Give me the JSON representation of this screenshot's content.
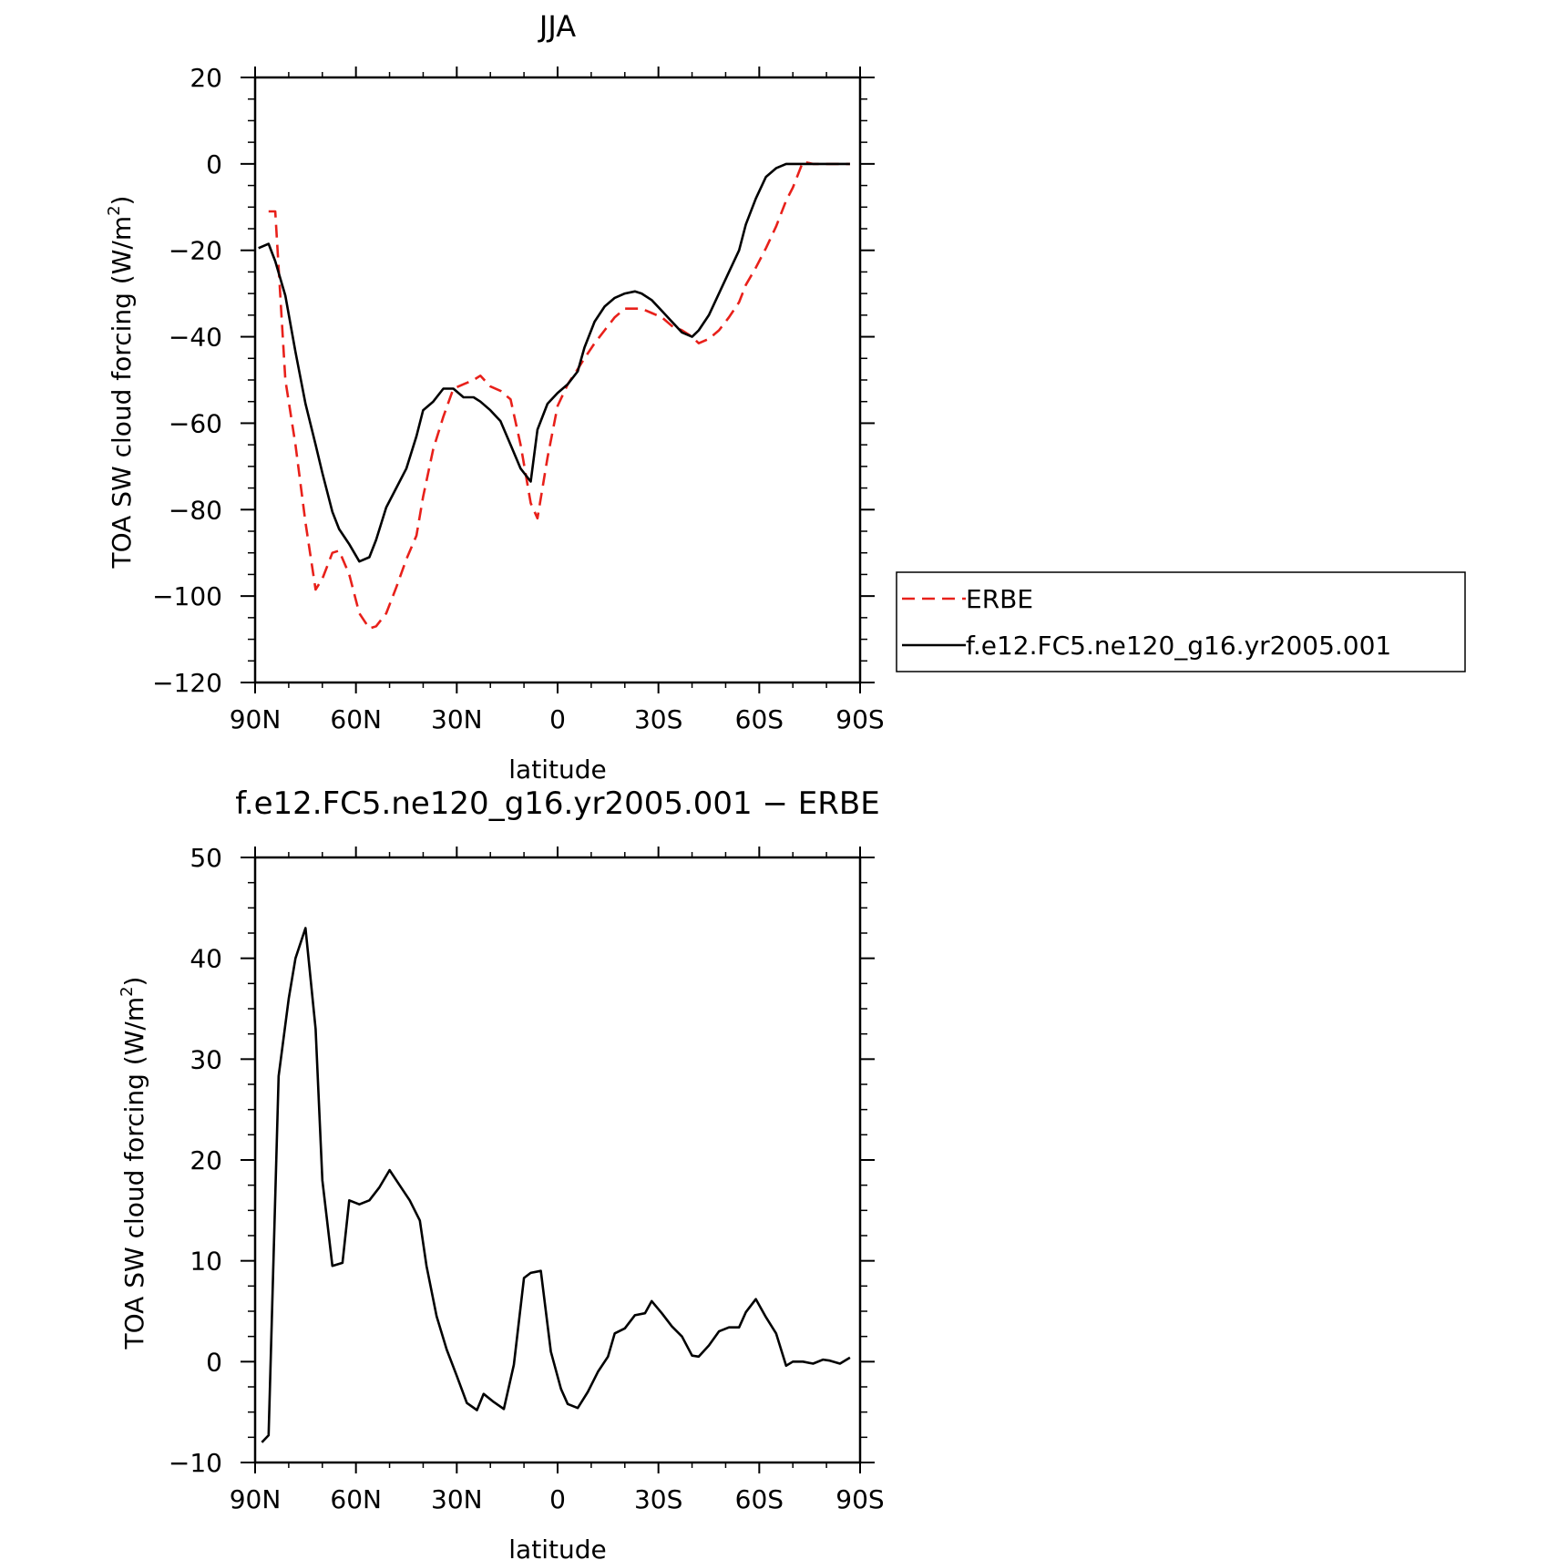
{
  "colors": {
    "erbe": "#e8201a",
    "model": "#000000",
    "axis": "#000000"
  },
  "chart_data": [
    {
      "type": "line",
      "title": "JJA",
      "xlabel": "latitude",
      "ylabel": "TOA SW cloud forcing (W/m",
      "ylabel_sup": "2",
      "ylabel_tail": ")",
      "xlim": [
        90,
        -90
      ],
      "ylim": [
        -120,
        20
      ],
      "xticks": [
        90,
        60,
        30,
        0,
        -30,
        -60,
        -90
      ],
      "xticklabels": [
        "90N",
        "60N",
        "30N",
        "0",
        "30S",
        "60S",
        "90S"
      ],
      "yticks": [
        -120,
        -100,
        -80,
        -60,
        -40,
        -20,
        0,
        20
      ],
      "yticklabels": [
        "−120",
        "−100",
        "−80",
        "−60",
        "−40",
        "−20",
        "0",
        "20"
      ],
      "legend": {
        "placement": "right",
        "entries": [
          "ERBE",
          "f.e12.FC5.ne120_g16.yr2005.001"
        ]
      },
      "series": [
        {
          "name": "ERBE",
          "style": "dashed",
          "color_key": "erbe",
          "x": [
            86,
            84,
            81,
            78,
            75,
            72,
            70,
            67,
            65,
            62,
            59,
            56,
            54,
            51,
            48,
            45,
            42,
            40,
            37,
            34,
            31,
            28,
            25,
            23,
            20,
            17,
            14,
            11,
            8,
            6,
            3,
            0,
            -3,
            -6,
            -8,
            -11,
            -14,
            -17,
            -20,
            -23,
            -25,
            -28,
            -31,
            -34,
            -37,
            -40,
            -42,
            -45,
            -48,
            -51,
            -54,
            -56,
            -59,
            -62,
            -65,
            -68,
            -70,
            -73,
            -76,
            -79,
            -82,
            -84,
            -87
          ],
          "y": [
            -11,
            -11,
            -50,
            -65,
            -83,
            -98.5,
            -96,
            -90,
            -89.5,
            -95,
            -104,
            -107.5,
            -107,
            -104,
            -98,
            -91.5,
            -86,
            -77,
            -66,
            -58.5,
            -52,
            -51,
            -50,
            -49,
            -51.5,
            -52.5,
            -54.5,
            -65,
            -78.5,
            -82,
            -68,
            -56,
            -51,
            -47.5,
            -45,
            -41.5,
            -38.5,
            -35.5,
            -33.5,
            -33.5,
            -33.5,
            -34.5,
            -35.5,
            -37.5,
            -38.5,
            -40,
            -41.5,
            -40.5,
            -38.5,
            -35.5,
            -32,
            -28,
            -24,
            -19.5,
            -14.5,
            -8.5,
            -5.5,
            0.5,
            0,
            0,
            0,
            0,
            0
          ]
        },
        {
          "name": "f.e12.FC5.ne120_g16.yr2005.001",
          "style": "solid",
          "color_key": "model",
          "x": [
            89,
            86,
            84,
            81,
            78,
            75,
            72,
            70,
            67,
            65,
            62,
            59,
            56,
            54,
            51,
            48,
            45,
            42,
            40,
            37,
            34,
            31,
            28,
            25,
            23,
            20,
            17,
            14,
            11,
            8,
            6,
            3,
            0,
            -3,
            -6,
            -8,
            -11,
            -14,
            -17,
            -20,
            -23,
            -25,
            -28,
            -31,
            -34,
            -37,
            -40,
            -42,
            -45,
            -48,
            -51,
            -54,
            -56,
            -59,
            -62,
            -65,
            -68,
            -70,
            -73,
            -76,
            -79,
            -82,
            -84,
            -87
          ],
          "y": [
            -19.5,
            -18.5,
            -22.5,
            -30.5,
            -43.5,
            -55.5,
            -65,
            -71.5,
            -80.5,
            -84.5,
            -88,
            -92,
            -91,
            -87,
            -79.5,
            -75,
            -70.5,
            -63,
            -57,
            -55,
            -52,
            -52,
            -54,
            -54,
            -55,
            -57,
            -59.5,
            -65,
            -70.5,
            -73.5,
            -61.5,
            -55.5,
            -53,
            -51,
            -48,
            -42.5,
            -36.5,
            -33,
            -31,
            -30,
            -29.5,
            -30,
            -31.5,
            -34,
            -36.5,
            -39,
            -40,
            -38.5,
            -35,
            -30,
            -25,
            -20,
            -14,
            -8,
            -3,
            -1,
            0,
            0,
            0,
            0,
            0,
            0,
            0,
            0
          ]
        }
      ]
    },
    {
      "type": "line",
      "title": "f.e12.FC5.ne120_g16.yr2005.001 − ERBE",
      "xlabel": "latitude",
      "ylabel": "TOA SW cloud forcing (W/m",
      "ylabel_sup": "2",
      "ylabel_tail": ")",
      "xlim": [
        90,
        -90
      ],
      "ylim": [
        -10,
        50
      ],
      "xticks": [
        90,
        60,
        30,
        0,
        -30,
        -60,
        -90
      ],
      "xticklabels": [
        "90N",
        "60N",
        "30N",
        "0",
        "30S",
        "60S",
        "90S"
      ],
      "yticks": [
        -10,
        0,
        10,
        20,
        30,
        40,
        50
      ],
      "yticklabels": [
        "−10",
        "0",
        "10",
        "20",
        "30",
        "40",
        "50"
      ],
      "series": [
        {
          "style": "solid",
          "color_key": "model",
          "x": [
            88,
            86,
            83,
            80,
            78,
            75,
            72,
            70,
            67,
            64,
            62,
            59,
            56,
            53,
            50,
            47,
            44,
            41,
            39,
            36,
            33,
            30,
            27,
            24,
            22,
            19,
            16,
            13,
            10,
            8,
            5,
            2,
            -1,
            -3,
            -6,
            -9,
            -12,
            -15,
            -17,
            -20,
            -23,
            -26,
            -28,
            -31,
            -34,
            -37,
            -40,
            -42,
            -45,
            -48,
            -51,
            -54,
            -56,
            -59,
            -62,
            -65,
            -68,
            -70,
            -73,
            -76,
            -79,
            -81,
            -84,
            -87
          ],
          "y": [
            -8,
            -7.3,
            28.3,
            36,
            40,
            43,
            33,
            18,
            9.5,
            9.8,
            16,
            15.6,
            16,
            17.3,
            19,
            17.5,
            16,
            14,
            9.5,
            4.5,
            1.2,
            -1.4,
            -4.1,
            -4.8,
            -3.2,
            -4,
            -4.7,
            -0.3,
            8.3,
            8.8,
            9,
            1,
            -2.7,
            -4.2,
            -4.6,
            -3,
            -1,
            0.5,
            2.8,
            3.3,
            4.6,
            4.8,
            6,
            4.8,
            3.5,
            2.5,
            0.6,
            0.5,
            1.6,
            3,
            3.4,
            3.4,
            4.9,
            6.2,
            4.4,
            2.8,
            -0.4,
            0,
            0,
            -0.2,
            0.2,
            0.1,
            -0.2,
            0.4
          ]
        }
      ]
    }
  ]
}
